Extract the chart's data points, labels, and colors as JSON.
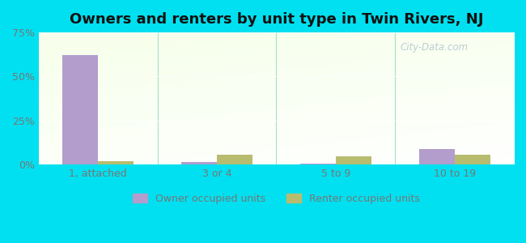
{
  "title": "Owners and renters by unit type in Twin Rivers, NJ",
  "categories": [
    "1, attached",
    "3 or 4",
    "5 to 9",
    "10 to 19"
  ],
  "owner_values": [
    62.0,
    1.2,
    0.4,
    9.0
  ],
  "renter_values": [
    2.0,
    5.5,
    4.5,
    5.5
  ],
  "owner_color": "#b39dcc",
  "renter_color": "#b8bc6e",
  "ylim": [
    0,
    75
  ],
  "yticks": [
    0,
    25,
    50,
    75
  ],
  "ytick_labels": [
    "0%",
    "25%",
    "50%",
    "75%"
  ],
  "background_outer": "#00e0f0",
  "watermark": "City-Data.com",
  "bar_width": 0.3,
  "title_fontsize": 13,
  "axis_fontsize": 9,
  "legend_fontsize": 9,
  "tick_color": "#777777",
  "separator_color": "#aaddcc"
}
